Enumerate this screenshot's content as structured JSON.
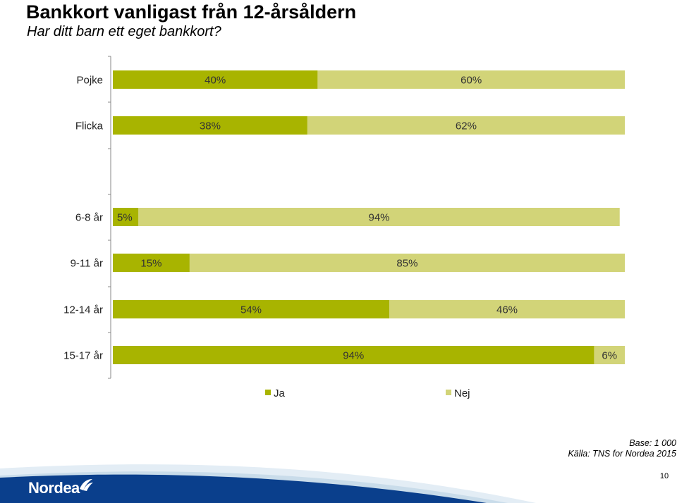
{
  "title": "Bankkort vanligast från 12-årsåldern",
  "subtitle": "Har ditt barn ett eget bankkort?",
  "chart_data": {
    "type": "bar",
    "orientation": "horizontal",
    "stacked": "100%",
    "categories": [
      "Pojke",
      "Flicka",
      "6-8 år",
      "9-11 år",
      "12-14 år",
      "15-17 år"
    ],
    "gap_after_category_index": 1,
    "series": [
      {
        "name": "Ja",
        "values": [
          40,
          38,
          5,
          15,
          54,
          94
        ],
        "color": "#a8b400"
      },
      {
        "name": "Nej",
        "values": [
          60,
          62,
          94,
          85,
          46,
          6
        ],
        "color": "#d2d478"
      }
    ],
    "data_labels": [
      [
        "40%",
        "38%",
        "5%",
        "15%",
        "54%",
        "94%"
      ],
      [
        "60%",
        "62%",
        "94%",
        "85%",
        "46%",
        "6%"
      ]
    ],
    "legend_position": "bottom",
    "grid": false,
    "xlim": [
      0,
      100
    ]
  },
  "footer": {
    "base": "Base: 1 000",
    "source": "Källa: TNS for Nordea 2015",
    "page_number": "10",
    "logo": "Nordea"
  },
  "colors": {
    "ja": "#a8b400",
    "nej": "#d2d478",
    "wave": "#dbe8f2",
    "logo_blue": "#0a3f8c"
  }
}
